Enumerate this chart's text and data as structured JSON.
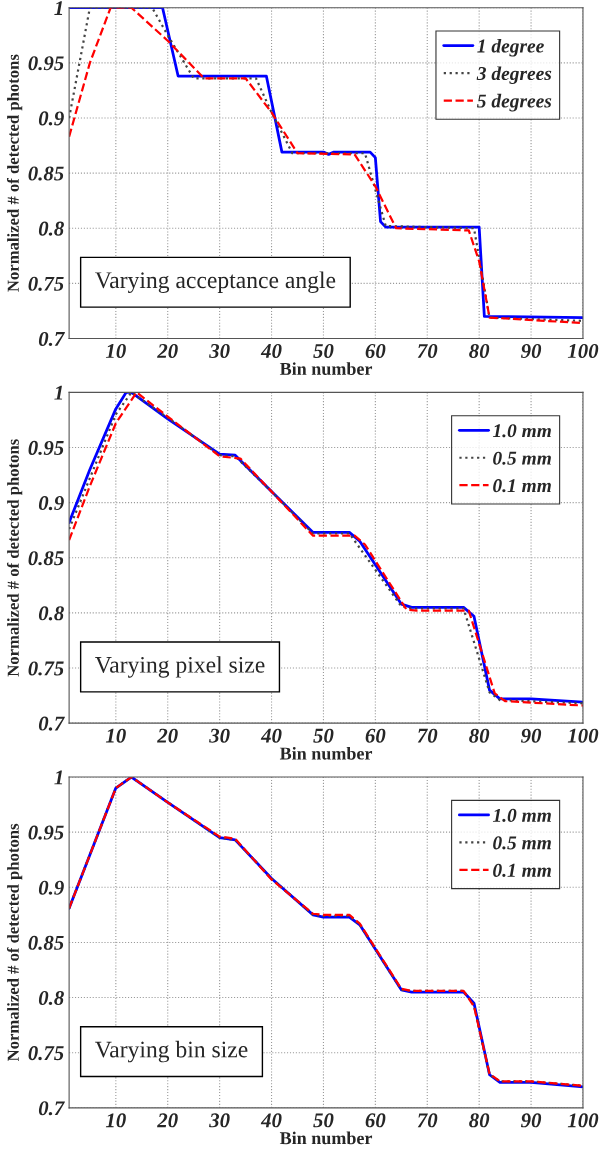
{
  "chart_data": [
    {
      "type": "line",
      "xlabel": "Bin number",
      "ylabel": "Normalized # of detected photons",
      "annotations": [
        "Varying acceptance angle"
      ],
      "xlim": [
        1,
        100
      ],
      "ylim": [
        0.7,
        1
      ],
      "xticks": [
        10,
        20,
        30,
        40,
        50,
        60,
        70,
        80,
        90,
        100
      ],
      "yticks": [
        0.7,
        0.75,
        0.8,
        0.85,
        0.9,
        0.95,
        1
      ],
      "grid": true,
      "legend": "top right",
      "series": [
        {
          "name": "1 degree",
          "color": "#0000ff",
          "line_style": "solid",
          "x": [
            1,
            19,
            22,
            39,
            42,
            50,
            51,
            52,
            59,
            60,
            61,
            62,
            80,
            81,
            100
          ],
          "values": [
            1.0,
            1.0,
            0.938,
            0.938,
            0.869,
            0.869,
            0.867,
            0.869,
            0.869,
            0.864,
            0.806,
            0.801,
            0.801,
            0.72,
            0.719
          ]
        },
        {
          "name": "3 degrees",
          "color": "#444444",
          "line_style": "dotted",
          "x": [
            1,
            5,
            17,
            20,
            25,
            37,
            40,
            44,
            58,
            62,
            79,
            82,
            100
          ],
          "values": [
            0.9,
            1.0,
            1.0,
            0.975,
            0.936,
            0.936,
            0.905,
            0.868,
            0.868,
            0.802,
            0.8,
            0.719,
            0.716
          ]
        },
        {
          "name": "5 degrees",
          "color": "#ff0000",
          "line_style": "dashed",
          "x": [
            1,
            5,
            9,
            13,
            20,
            27,
            35,
            40,
            45,
            56,
            60,
            64,
            78,
            80,
            82,
            100
          ],
          "values": [
            0.883,
            0.95,
            1.0,
            1.0,
            0.97,
            0.936,
            0.936,
            0.905,
            0.868,
            0.867,
            0.838,
            0.8,
            0.798,
            0.77,
            0.719,
            0.714
          ]
        }
      ]
    },
    {
      "type": "line",
      "xlabel": "Bin number",
      "ylabel": "Normalized # of detected photons",
      "annotations": [
        "Varying pixel size"
      ],
      "xlim": [
        1,
        100
      ],
      "ylim": [
        0.7,
        1
      ],
      "xticks": [
        10,
        20,
        30,
        40,
        50,
        60,
        70,
        80,
        90,
        100
      ],
      "yticks": [
        0.7,
        0.75,
        0.8,
        0.85,
        0.9,
        0.95,
        1
      ],
      "grid": true,
      "legend": "top right",
      "series": [
        {
          "name": "1.0 mm",
          "color": "#0000ff",
          "line_style": "solid",
          "x": [
            1,
            5,
            10,
            12,
            13,
            20,
            30,
            33,
            40,
            48,
            55,
            57,
            65,
            67,
            77,
            79,
            82,
            84,
            90,
            100
          ],
          "values": [
            0.882,
            0.93,
            0.985,
            1.0,
            1.0,
            0.976,
            0.944,
            0.943,
            0.91,
            0.873,
            0.873,
            0.865,
            0.808,
            0.805,
            0.805,
            0.797,
            0.73,
            0.722,
            0.722,
            0.719
          ]
        },
        {
          "name": "0.5 mm",
          "color": "#444444",
          "line_style": "dotted",
          "x": [
            1,
            10,
            13,
            20,
            30,
            33,
            40,
            48,
            55,
            65,
            67,
            77,
            82,
            84,
            100
          ],
          "values": [
            0.876,
            0.98,
            1.0,
            0.977,
            0.943,
            0.942,
            0.91,
            0.872,
            0.872,
            0.806,
            0.804,
            0.804,
            0.728,
            0.721,
            0.718
          ]
        },
        {
          "name": "0.1 mm",
          "color": "#ff0000",
          "line_style": "dashed",
          "x": [
            1,
            5,
            10,
            14,
            20,
            30,
            34,
            40,
            48,
            56,
            58,
            66,
            68,
            78,
            83,
            85,
            100
          ],
          "values": [
            0.866,
            0.915,
            0.972,
            1.0,
            0.978,
            0.942,
            0.94,
            0.91,
            0.87,
            0.87,
            0.862,
            0.803,
            0.802,
            0.802,
            0.727,
            0.72,
            0.716
          ]
        }
      ]
    },
    {
      "type": "line",
      "xlabel": "Bin number",
      "ylabel": "Normalized # of detected photons",
      "annotations": [
        "Varying bin size"
      ],
      "xlim": [
        1,
        100
      ],
      "ylim": [
        0.7,
        1
      ],
      "xticks": [
        10,
        20,
        30,
        40,
        50,
        60,
        70,
        80,
        90,
        100
      ],
      "yticks": [
        0.7,
        0.75,
        0.8,
        0.85,
        0.9,
        0.95,
        1
      ],
      "grid": true,
      "legend": "top right",
      "series": [
        {
          "name": "1.0 mm",
          "color": "#0000ff",
          "line_style": "solid",
          "x": [
            1,
            10,
            13,
            20,
            30,
            33,
            40,
            48,
            50,
            55,
            57,
            65,
            67,
            77,
            79,
            82,
            84,
            90,
            100
          ],
          "values": [
            0.881,
            0.99,
            1.0,
            0.977,
            0.945,
            0.943,
            0.908,
            0.875,
            0.873,
            0.873,
            0.866,
            0.807,
            0.805,
            0.805,
            0.795,
            0.73,
            0.723,
            0.723,
            0.719
          ]
        },
        {
          "name": "0.5 mm",
          "color": "#444444",
          "line_style": "dotted",
          "x": [
            1,
            10,
            13,
            20,
            30,
            33,
            40,
            48,
            50,
            55,
            57,
            65,
            67,
            77,
            79,
            82,
            84,
            90,
            100
          ],
          "values": [
            0.881,
            0.99,
            1.0,
            0.977,
            0.945,
            0.943,
            0.908,
            0.875,
            0.874,
            0.874,
            0.866,
            0.807,
            0.806,
            0.806,
            0.793,
            0.73,
            0.724,
            0.724,
            0.72
          ]
        },
        {
          "name": "0.1 mm",
          "color": "#ff0000",
          "line_style": "dashed",
          "x": [
            1,
            10,
            13,
            20,
            30,
            33,
            40,
            48,
            50,
            55,
            57,
            65,
            67,
            77,
            79,
            82,
            84,
            90,
            100
          ],
          "values": [
            0.881,
            0.99,
            1.0,
            0.977,
            0.946,
            0.944,
            0.907,
            0.876,
            0.875,
            0.875,
            0.867,
            0.808,
            0.806,
            0.806,
            0.792,
            0.731,
            0.724,
            0.724,
            0.72
          ]
        }
      ]
    }
  ]
}
